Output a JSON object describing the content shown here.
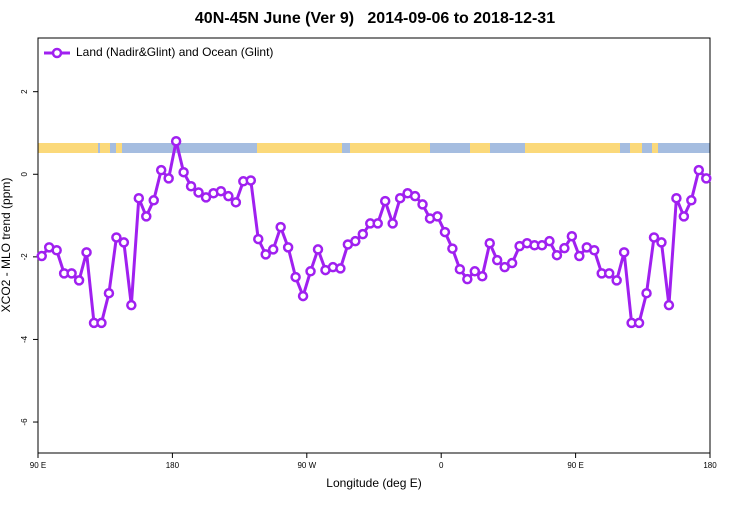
{
  "chart_data": {
    "type": "line",
    "title": "40N-45N June (Ver 9)   2014-09-06 to 2018-12-31",
    "x_label": "Longitude (deg E)",
    "y_label": "XCO2 - MLO trend (ppm)",
    "x": [
      92.5,
      97.5,
      102.5,
      107.5,
      112.5,
      117.5,
      122.5,
      127.5,
      132.5,
      137.5,
      142.5,
      147.5,
      152.5,
      157.5,
      162.5,
      167.5,
      172.5,
      177.5,
      182.5,
      187.5,
      192.5,
      197.5,
      202.5,
      207.5,
      212.5,
      217.5,
      222.5,
      227.5,
      232.5,
      237.5,
      242.5,
      247.5,
      252.5,
      257.5,
      262.5,
      267.5,
      272.5,
      277.5,
      282.5,
      287.5,
      292.5,
      297.5,
      302.5,
      307.5,
      312.5,
      317.5,
      322.5,
      327.5,
      332.5,
      337.5,
      342.5,
      347.5,
      352.5,
      357.5,
      362.5,
      367.5,
      372.5,
      377.5,
      382.5,
      387.5,
      392.5,
      397.5,
      402.5,
      407.5,
      412.5,
      417.5,
      422.5,
      427.5,
      432.5,
      437.5,
      442.5,
      447.5,
      452.5,
      457.5,
      462.5,
      467.5,
      472.5,
      477.5,
      482.5,
      487.5,
      492.5,
      497.5,
      502.5,
      507.5,
      512.5,
      517.5,
      522.5,
      527.5,
      532.5,
      537.5
    ],
    "series": [
      {
        "name": "Land (Nadir&Glint) and Ocean (Glint)",
        "color": "#a020f0",
        "values": [
          -1.98,
          -1.77,
          -1.84,
          -2.4,
          -2.4,
          -2.57,
          -1.89,
          -3.6,
          -3.6,
          -2.88,
          -1.53,
          -1.65,
          -3.17,
          -0.58,
          -1.02,
          -0.63,
          0.1,
          -0.1,
          0.8,
          0.05,
          -0.29,
          -0.44,
          -0.56,
          -0.46,
          -0.41,
          -0.53,
          -0.68,
          -0.17,
          -0.15,
          -1.57,
          -1.94,
          -1.82,
          -1.28,
          -1.77,
          -2.49,
          -2.95,
          -2.35,
          -1.82,
          -2.32,
          -2.25,
          -2.28,
          -1.7,
          -1.62,
          -1.45,
          -1.19,
          -1.19,
          -0.65,
          -1.19,
          -0.58,
          -0.46,
          -0.53,
          -0.73,
          -1.07,
          -1.02,
          -1.4,
          -1.8,
          -2.3,
          -2.54,
          -2.35,
          -2.47,
          -1.67,
          -2.08,
          -2.25,
          -2.15,
          -1.74,
          -1.67,
          -1.72,
          -1.72,
          -1.62,
          -1.96,
          -1.79,
          -1.5,
          -1.98,
          -1.77,
          -1.84,
          -2.4,
          -2.4,
          -2.57,
          -1.89,
          -3.6,
          -3.6,
          -2.88,
          -1.53,
          -1.65,
          -3.17,
          -0.58,
          -1.02,
          -0.63,
          0.1,
          -0.1
        ]
      }
    ],
    "xlim": [
      90,
      540
    ],
    "xticks": [
      {
        "value": 90,
        "label": "90 E"
      },
      {
        "value": 180,
        "label": "180"
      },
      {
        "value": 270,
        "label": "90 W"
      },
      {
        "value": 360,
        "label": "0"
      },
      {
        "value": 450,
        "label": "90 E"
      },
      {
        "value": 540,
        "label": "180"
      }
    ],
    "ylim": [
      -6.75,
      3.3
    ],
    "yticks": [
      -6,
      -4,
      -2,
      0,
      2
    ],
    "grid": false,
    "legend": "top-left"
  }
}
